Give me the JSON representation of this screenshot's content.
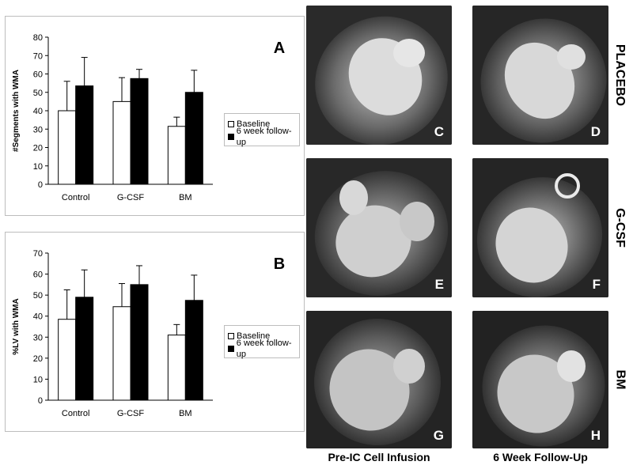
{
  "chart_data": [
    {
      "panel": "A",
      "type": "bar",
      "categories": [
        "Control",
        "G-CSF",
        "BM"
      ],
      "ylabel": "#Segments with WMA",
      "ylim": [
        0,
        80
      ],
      "yticks": [
        0,
        10,
        20,
        30,
        40,
        50,
        60,
        70,
        80
      ],
      "series": [
        {
          "name": "Baseline",
          "color": "#ffffff",
          "values": [
            40,
            45,
            31.5
          ],
          "errors": [
            16,
            13,
            5
          ]
        },
        {
          "name": "6 week follow-up",
          "color": "#000000",
          "values": [
            53.5,
            57.5,
            50
          ],
          "errors": [
            15.5,
            5,
            12
          ]
        }
      ],
      "legend": "right"
    },
    {
      "panel": "B",
      "type": "bar",
      "categories": [
        "Control",
        "G-CSF",
        "BM"
      ],
      "ylabel": "%LV with WMA",
      "ylim": [
        0,
        70
      ],
      "yticks": [
        0,
        10,
        20,
        30,
        40,
        50,
        60,
        70
      ],
      "series": [
        {
          "name": "Baseline",
          "color": "#ffffff",
          "values": [
            38.5,
            44.5,
            31
          ],
          "errors": [
            14,
            11,
            5
          ]
        },
        {
          "name": "6 week follow-up",
          "color": "#000000",
          "values": [
            49,
            55,
            47.5
          ],
          "errors": [
            13,
            9,
            12
          ]
        }
      ],
      "legend": "right"
    }
  ],
  "images": {
    "panels": [
      "C",
      "D",
      "E",
      "F",
      "G",
      "H"
    ],
    "row_labels": [
      "PLACEBO",
      "G-CSF",
      "BM"
    ],
    "column_labels": [
      "Pre-IC Cell Infusion",
      "6 Week Follow-Up"
    ]
  }
}
